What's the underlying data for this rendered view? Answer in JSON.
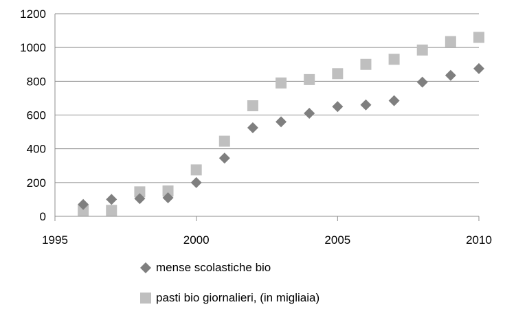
{
  "chart_data": {
    "type": "scatter",
    "x_ticks": [
      1995,
      2000,
      2005,
      2010
    ],
    "y_ticks": [
      0,
      200,
      400,
      600,
      800,
      1000,
      1200
    ],
    "xlim": [
      1995,
      2010
    ],
    "ylim": [
      0,
      1200
    ],
    "grid": "horizontal",
    "legend_position": "bottom",
    "series": [
      {
        "name": "mense scolastiche bio",
        "marker": "diamond",
        "color": "#7f7f7f",
        "x": [
          1996,
          1997,
          1998,
          1999,
          2000,
          2001,
          2002,
          2003,
          2004,
          2005,
          2006,
          2007,
          2008,
          2009,
          2010
        ],
        "values": [
          70,
          100,
          105,
          110,
          200,
          345,
          525,
          560,
          610,
          650,
          660,
          685,
          795,
          835,
          875
        ]
      },
      {
        "name": "pasti bio giornalieri, (in migliaia)",
        "marker": "square",
        "color": "#bfbfbf",
        "x": [
          1996,
          1997,
          1998,
          1999,
          2000,
          2001,
          2002,
          2003,
          2004,
          2005,
          2006,
          2007,
          2008,
          2009,
          2010
        ],
        "values": [
          35,
          35,
          145,
          150,
          275,
          445,
          655,
          790,
          810,
          845,
          900,
          930,
          985,
          1035,
          1060
        ]
      }
    ]
  }
}
